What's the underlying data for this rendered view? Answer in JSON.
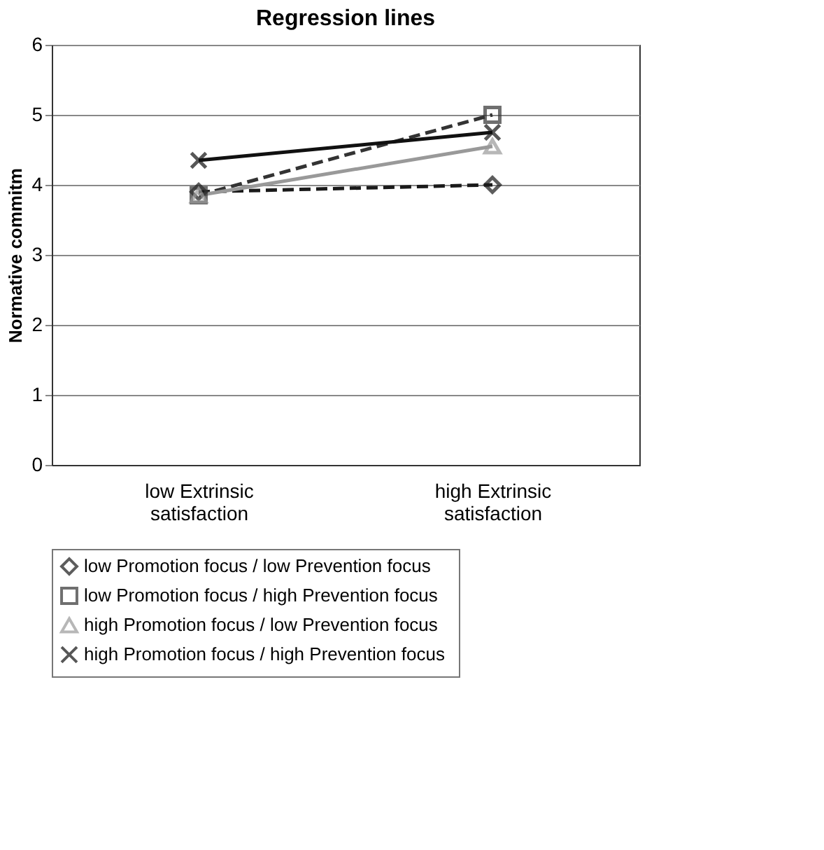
{
  "chart_data": {
    "type": "line",
    "title": "Regression lines",
    "ylabel": "Normative commitm",
    "categories": [
      "low Extrinsic satisfaction",
      "high Extrinsic satisfaction"
    ],
    "series": [
      {
        "name": "low Promotion focus  / low Prevention focus",
        "color": "#1a1a1a",
        "values": [
          3.9,
          4.0
        ],
        "marker": "diamond",
        "line_style": "dashed"
      },
      {
        "name": "low Promotion focus  / high Prevention focus",
        "color": "#333333",
        "values": [
          3.85,
          5.0
        ],
        "marker": "square",
        "line_style": "dashed"
      },
      {
        "name": "high Promotion focus  / low Prevention focus",
        "color": "#999999",
        "values": [
          3.85,
          4.55
        ],
        "marker": "triangle",
        "line_style": "solid"
      },
      {
        "name": "high Promotion focus  / high Prevention focus",
        "color": "#111111",
        "values": [
          4.35,
          4.75
        ],
        "marker": "cross",
        "line_style": "solid"
      }
    ],
    "ylim": [
      0,
      6
    ],
    "yticks": [
      0,
      1,
      2,
      3,
      4,
      5,
      6
    ],
    "grid": "y",
    "legend": "bottom"
  }
}
